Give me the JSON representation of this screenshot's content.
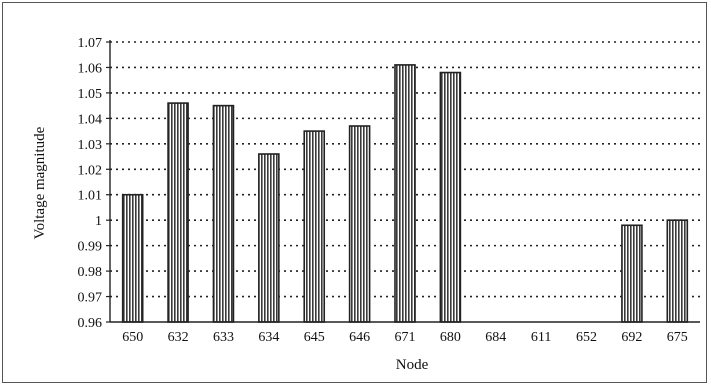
{
  "chart_data": {
    "type": "bar",
    "title": "",
    "xlabel": "Node",
    "ylabel": "Voltage magnitude",
    "categories": [
      "650",
      "632",
      "633",
      "634",
      "645",
      "646",
      "671",
      "680",
      "684",
      "611",
      "652",
      "692",
      "675"
    ],
    "values": [
      1.01,
      1.046,
      1.045,
      1.026,
      1.035,
      1.037,
      1.061,
      1.058,
      null,
      null,
      null,
      0.998,
      1.0
    ],
    "ylim": [
      0.96,
      1.07
    ],
    "yticks": [
      "0.96",
      "0.97",
      "0.98",
      "0.99",
      "1",
      "1.01",
      "1.02",
      "1.03",
      "1.04",
      "1.05",
      "1.06",
      "1.07"
    ],
    "grid": "horizontal dotted",
    "legend": "none",
    "bar_pattern": "vertical hatch",
    "colors": {
      "bar_fill": "#ffffff",
      "bar_stroke": "#222222",
      "hatch": "#3a3a3a",
      "grid": "#222222"
    }
  }
}
